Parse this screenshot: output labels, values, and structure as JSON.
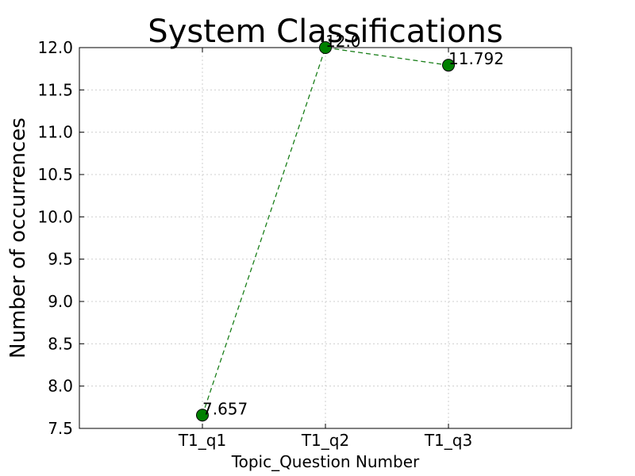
{
  "chart_data": {
    "type": "line",
    "title": "System Classifications",
    "xlabel": "Topic_Question Number",
    "ylabel": "Number of occurrences",
    "categories": [
      "T1_q1",
      "T1_q2",
      "T1_q3"
    ],
    "series": [
      {
        "values": [
          7.657,
          12.0,
          11.792
        ],
        "labels": [
          "7.657",
          "12.0",
          "11.792"
        ],
        "color": "#1a7f1a",
        "marker_color": "#008000",
        "line_style": "dashed",
        "marker": "circle"
      }
    ],
    "ylim": [
      7.5,
      12.0
    ],
    "y_ticks": [
      7.5,
      8.0,
      8.5,
      9.0,
      9.5,
      10.0,
      10.5,
      11.0,
      11.5,
      12.0
    ],
    "y_tick_labels": [
      "7.5",
      "8.0",
      "8.5",
      "9.0",
      "9.5",
      "10.0",
      "10.5",
      "11.0",
      "11.5",
      "12.0"
    ],
    "grid": true,
    "legend": false
  }
}
